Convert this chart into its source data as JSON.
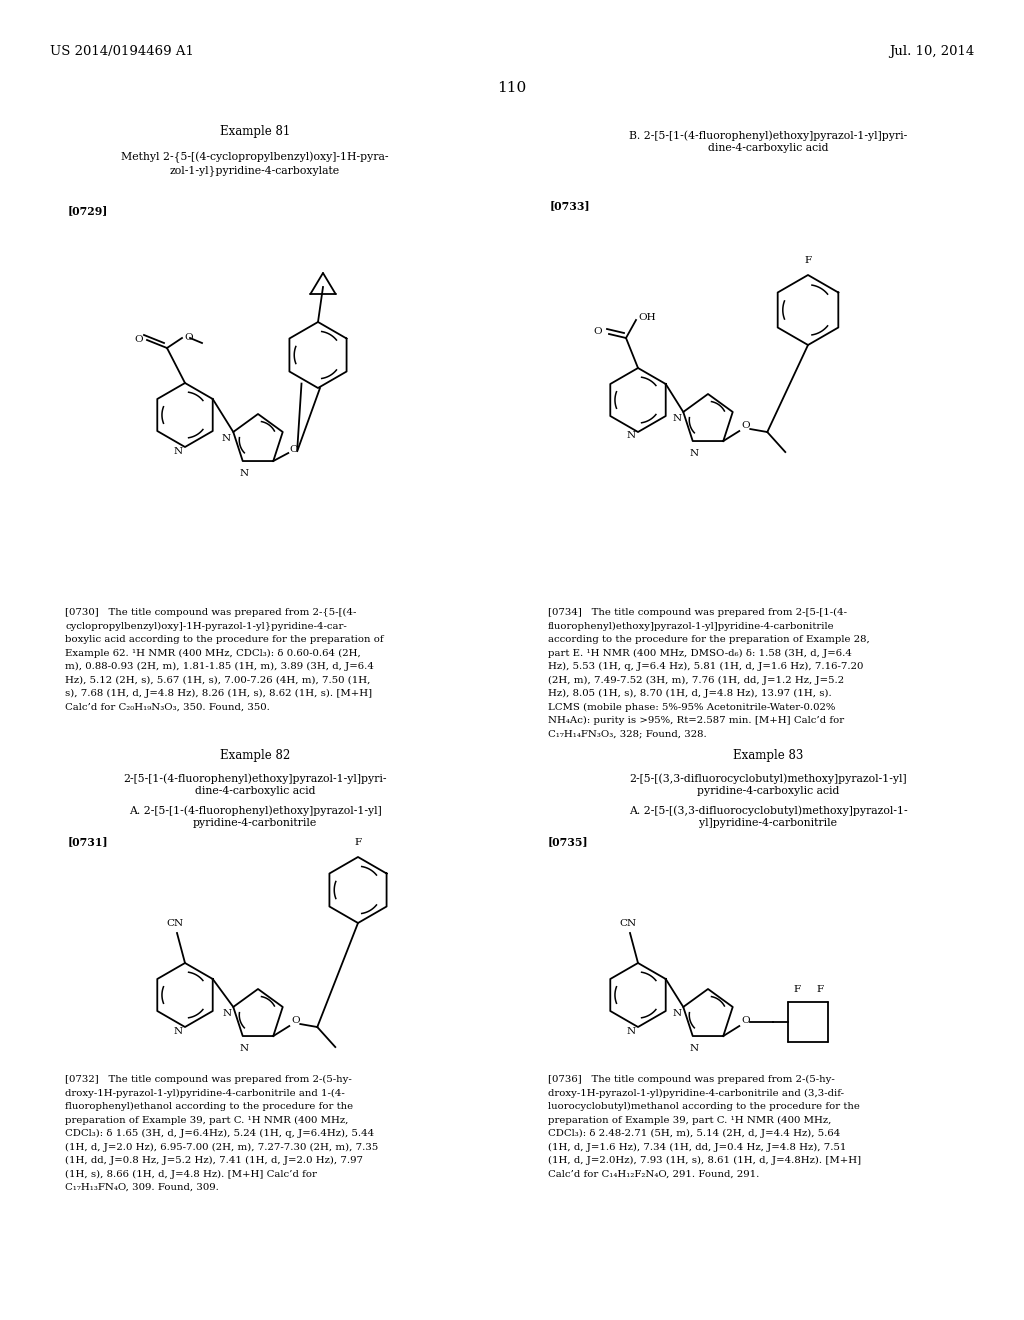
{
  "bg_color": "#ffffff",
  "header_left": "US 2014/0194469 A1",
  "header_right": "Jul. 10, 2014",
  "page_number": "110",
  "fs_header": 9.5,
  "fs_title": 8.5,
  "fs_body": 7.8,
  "fs_page": 11,
  "fs_struct": 7.5,
  "lw": 1.3,
  "p730_lines": [
    "[0730]   The title compound was prepared from 2-{5-[(4-",
    "cyclopropylbenzyl)oxy]-1H-pyrazol-1-yl}pyridine-4-car-",
    "boxylic acid according to the procedure for the preparation of",
    "Example 62. ¹H NMR (400 MHz, CDCl₃): δ 0.60-0.64 (2H,",
    "m), 0.88-0.93 (2H, m), 1.81-1.85 (1H, m), 3.89 (3H, d, J=6.4",
    "Hz), 5.12 (2H, s), 5.67 (1H, s), 7.00-7.26 (4H, m), 7.50 (1H,",
    "s), 7.68 (1H, d, J=4.8 Hz), 8.26 (1H, s), 8.62 (1H, s). [M+H]",
    "Calc’d for C₂₀H₁₉N₃O₃, 350. Found, 350."
  ],
  "p734_lines": [
    "[0734]   The title compound was prepared from 2-[5-[1-(4-",
    "fluorophenyl)ethoxy]pyrazol-1-yl]pyridine-4-carbonitrile",
    "according to the procedure for the preparation of Example 28,",
    "part E. ¹H NMR (400 MHz, DMSO-d₆) δ: 1.58 (3H, d, J=6.4",
    "Hz), 5.53 (1H, q, J=6.4 Hz), 5.81 (1H, d, J=1.6 Hz), 7.16-7.20",
    "(2H, m), 7.49-7.52 (3H, m), 7.76 (1H, dd, J=1.2 Hz, J=5.2",
    "Hz), 8.05 (1H, s), 8.70 (1H, d, J=4.8 Hz), 13.97 (1H, s).",
    "LCMS (mobile phase: 5%-95% Acetonitrile-Water-0.02%",
    "NH₄Ac): purity is >95%, Rt=2.587 min. [M+H] Calc’d for",
    "C₁₇H₁₄FN₃O₃, 328; Found, 328."
  ],
  "p732_lines": [
    "[0732]   The title compound was prepared from 2-(5-hy-",
    "droxy-1H-pyrazol-1-yl)pyridine-4-carbonitrile and 1-(4-",
    "fluorophenyl)ethanol according to the procedure for the",
    "preparation of Example 39, part C. ¹H NMR (400 MHz,",
    "CDCl₃): δ 1.65 (3H, d, J=6.4Hz), 5.24 (1H, q, J=6.4Hz), 5.44",
    "(1H, d, J=2.0 Hz), 6.95-7.00 (2H, m), 7.27-7.30 (2H, m), 7.35",
    "(1H, dd, J=0.8 Hz, J=5.2 Hz), 7.41 (1H, d, J=2.0 Hz), 7.97",
    "(1H, s), 8.66 (1H, d, J=4.8 Hz). [M+H] Calc’d for",
    "C₁₇H₁₃FN₄O, 309. Found, 309."
  ],
  "p736_lines": [
    "[0736]   The title compound was prepared from 2-(5-hy-",
    "droxy-1H-pyrazol-1-yl)pyridine-4-carbonitrile and (3,3-dif-",
    "luorocyclobutyl)methanol according to the procedure for the",
    "preparation of Example 39, part C. ¹H NMR (400 MHz,",
    "CDCl₃): δ 2.48-2.71 (5H, m), 5.14 (2H, d, J=4.4 Hz), 5.64",
    "(1H, d, J=1.6 Hz), 7.34 (1H, dd, J=0.4 Hz, J=4.8 Hz), 7.51",
    "(1H, d, J=2.0Hz), 7.93 (1H, s), 8.61 (1H, d, J=4.8Hz). [M+H]",
    "Calc’d for C₁₄H₁₂F₂N₄O, 291. Found, 291."
  ]
}
